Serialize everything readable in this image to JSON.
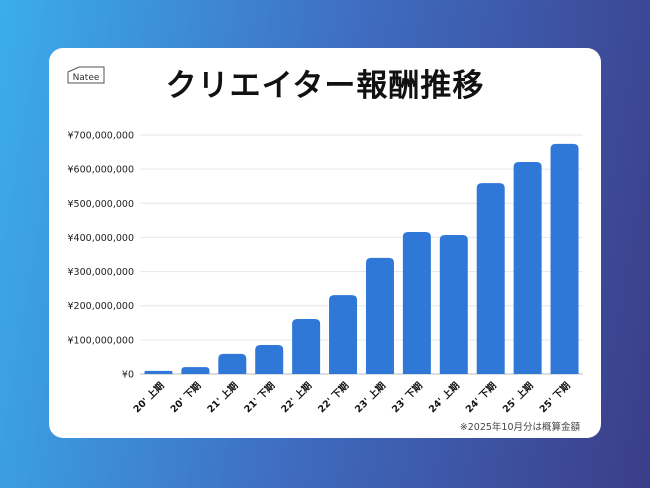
{
  "logo_text": "Natee",
  "title": "クリエイター報酬推移",
  "note": "※2025年10月分は概算金額",
  "chart_data": {
    "type": "bar",
    "title": "クリエイター報酬推移",
    "categories": [
      "20' 上期",
      "20' 下期",
      "21' 上期",
      "21' 下期",
      "22' 上期",
      "22' 下期",
      "23' 上期",
      "23' 下期",
      "24' 上期",
      "24' 下期",
      "25' 上期",
      "25' 下期"
    ],
    "values": [
      9000000,
      20000000,
      59000000,
      85000000,
      161000000,
      231000000,
      340000000,
      416000000,
      407000000,
      559000000,
      621000000,
      674000000
    ],
    "ylim": [
      0,
      700000000
    ],
    "yticks": [
      0,
      100000000,
      200000000,
      300000000,
      400000000,
      500000000,
      600000000,
      700000000
    ],
    "ytick_labels": [
      "¥0",
      "¥100,000,000",
      "¥200,000,000",
      "¥300,000,000",
      "¥400,000,000",
      "¥500,000,000",
      "¥600,000,000",
      "¥700,000,000"
    ],
    "grid": true,
    "bar_color": "#2f78d8"
  }
}
